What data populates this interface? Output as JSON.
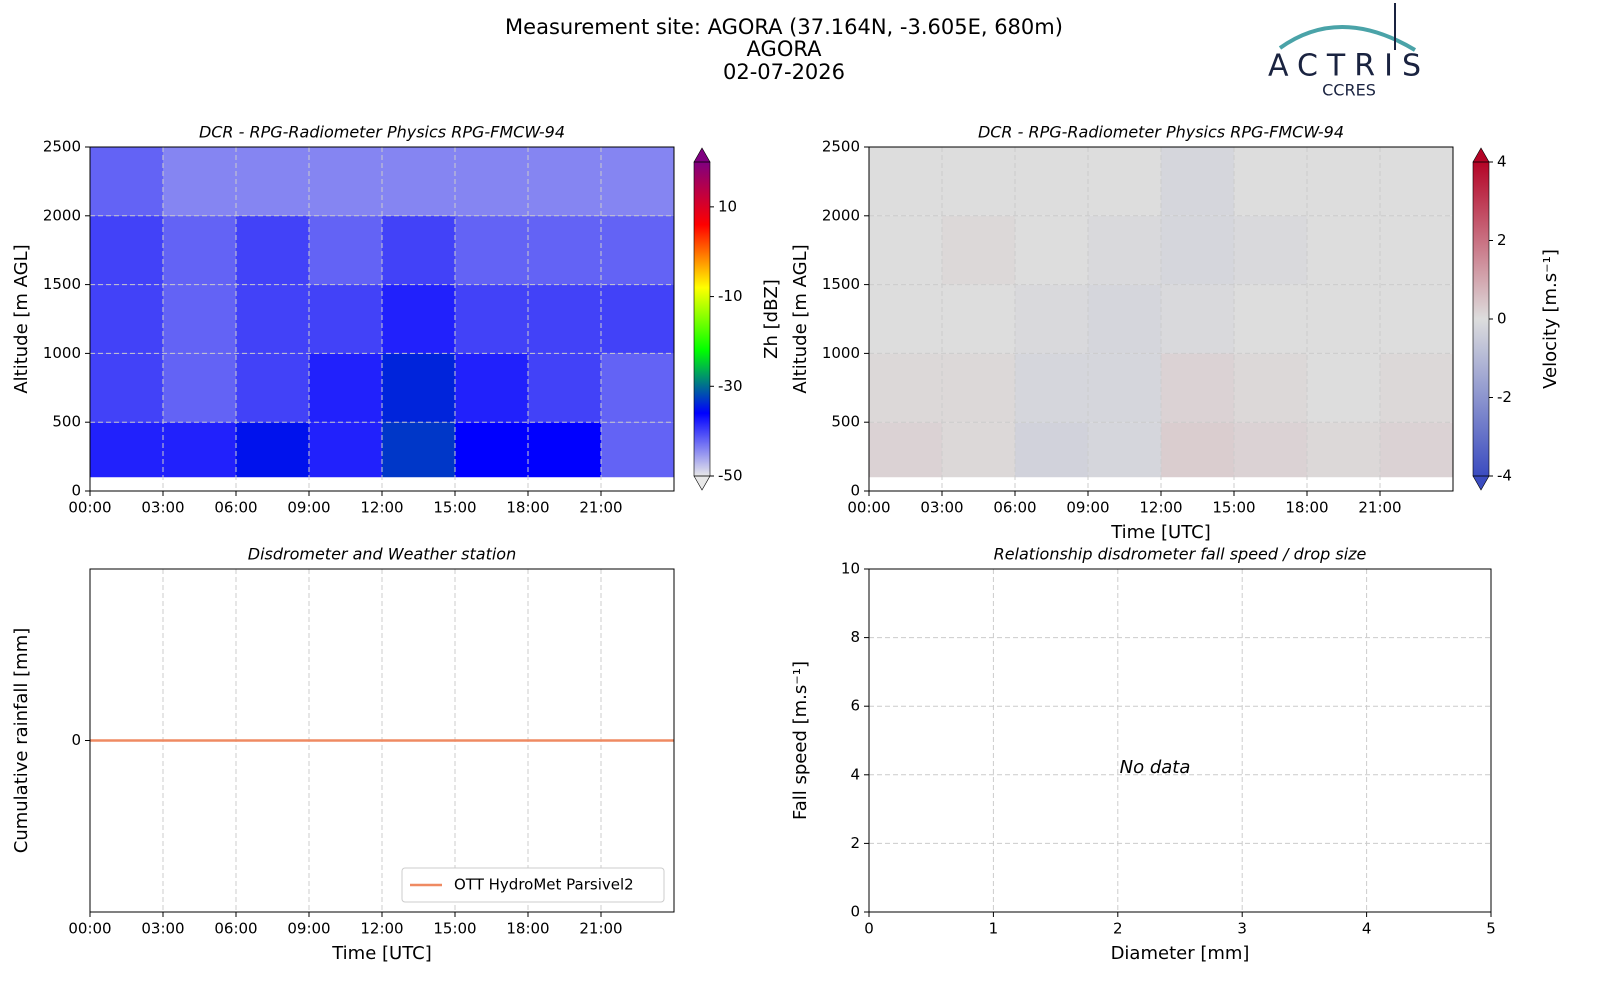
{
  "header": {
    "title": [
      "Measurement site: AGORA (37.164N, -3.605E, 680m)",
      "AGORA",
      "02-07-2026"
    ],
    "logo": "ACTRIS",
    "logo_sub": "CCRES"
  },
  "chart_data": [
    {
      "type": "heatmap",
      "title": "DCR - RPG-Radiometer Physics RPG-FMCW-94",
      "ylabel": "Altitude [m AGL]",
      "x": [
        0,
        3,
        6,
        9,
        12,
        15,
        18,
        21,
        24
      ],
      "y": [
        100,
        500,
        1000,
        1500,
        2000,
        2500
      ],
      "z": [
        [
          -38,
          -38,
          -35,
          -38,
          -33,
          -36,
          -36,
          -42
        ],
        [
          -40,
          -42,
          -40,
          -38,
          -34,
          -38,
          -40,
          -42
        ],
        [
          -40,
          -42,
          -40,
          -40,
          -38,
          -40,
          -40,
          -40
        ],
        [
          -40,
          -42,
          -40,
          -42,
          -40,
          -42,
          -42,
          -42
        ],
        [
          -42,
          -44,
          -44,
          -44,
          -44,
          -44,
          -44,
          -44
        ]
      ],
      "xlim": [
        0,
        24
      ],
      "xticks": [
        {
          "value": 0,
          "label": "00:00"
        },
        {
          "value": 3,
          "label": "03:00"
        },
        {
          "value": 6,
          "label": "06:00"
        },
        {
          "value": 9,
          "label": "09:00"
        },
        {
          "value": 12,
          "label": "12:00"
        },
        {
          "value": 15,
          "label": "15:00"
        },
        {
          "value": 18,
          "label": "18:00"
        },
        {
          "value": 21,
          "label": "21:00"
        }
      ],
      "ylim": [
        0,
        2500
      ],
      "yticks": [
        0,
        500,
        1000,
        1500,
        2000,
        2500
      ],
      "grid": true,
      "colorbar_label": "Zh [dBZ]",
      "clim": [
        -50,
        20
      ],
      "cticks": [
        -50,
        -30,
        -10,
        10
      ],
      "colorscale": [
        "#e8e8e8",
        "#0000ff",
        "#00ff00",
        "#ffff00",
        "#ff0000",
        "#800080"
      ]
    },
    {
      "type": "heatmap",
      "title": "DCR - RPG-Radiometer Physics RPG-FMCW-94",
      "ylabel": "Altitude [m AGL]",
      "xlabel": "Time [UTC]",
      "x": [
        0,
        3,
        6,
        9,
        12,
        15,
        18,
        21,
        24
      ],
      "y": [
        100,
        500,
        1000,
        1500,
        2000,
        2500
      ],
      "z": [
        [
          0.2,
          0.1,
          -0.3,
          -0.2,
          0.3,
          0.2,
          0.1,
          0.2
        ],
        [
          0.1,
          0.1,
          -0.2,
          -0.2,
          0.2,
          0.1,
          0,
          0.1
        ],
        [
          0,
          0,
          -0.1,
          -0.2,
          -0.1,
          0,
          0,
          0
        ],
        [
          0,
          0.1,
          0,
          -0.1,
          -0.2,
          -0.1,
          0,
          0
        ],
        [
          0,
          0,
          0,
          0,
          -0.2,
          0,
          0,
          0
        ]
      ],
      "xlim": [
        0,
        24
      ],
      "xticks": [
        {
          "value": 0,
          "label": "00:00"
        },
        {
          "value": 3,
          "label": "03:00"
        },
        {
          "value": 6,
          "label": "06:00"
        },
        {
          "value": 9,
          "label": "09:00"
        },
        {
          "value": 12,
          "label": "12:00"
        },
        {
          "value": 15,
          "label": "15:00"
        },
        {
          "value": 18,
          "label": "18:00"
        },
        {
          "value": 21,
          "label": "21:00"
        }
      ],
      "ylim": [
        0,
        2500
      ],
      "yticks": [
        0,
        500,
        1000,
        1500,
        2000,
        2500
      ],
      "grid": true,
      "colorbar_label": "Velocity [m.s⁻¹]",
      "clim": [
        -4,
        4
      ],
      "cticks": [
        -4,
        -2,
        0,
        2,
        4
      ],
      "colorscale": [
        "#3b4cc0",
        "#dddddd",
        "#b40426"
      ]
    },
    {
      "type": "line",
      "title": "Disdrometer and Weather station",
      "ylabel": "Cumulative rainfall [mm]",
      "xlabel": "Time [UTC]",
      "x": [
        0,
        24
      ],
      "series": [
        {
          "name": "OTT HydroMet Parsivel2",
          "color": "#ef8a62",
          "values": [
            0,
            0
          ]
        }
      ],
      "xlim": [
        0,
        24
      ],
      "xticks": [
        {
          "value": 0,
          "label": "00:00"
        },
        {
          "value": 3,
          "label": "03:00"
        },
        {
          "value": 6,
          "label": "06:00"
        },
        {
          "value": 9,
          "label": "09:00"
        },
        {
          "value": 12,
          "label": "12:00"
        },
        {
          "value": 15,
          "label": "15:00"
        },
        {
          "value": 18,
          "label": "18:00"
        },
        {
          "value": 21,
          "label": "21:00"
        }
      ],
      "ylim": [
        -0.05,
        0.05
      ],
      "yticks": [
        0
      ],
      "grid": true,
      "legend": "lower right"
    },
    {
      "type": "scatter",
      "title": "Relationship disdrometer fall speed / drop size",
      "xlabel": "Diameter [mm]",
      "ylabel": "Fall speed [m.s⁻¹]",
      "annotation": "No data",
      "xlim": [
        0,
        5
      ],
      "xticks": [
        0,
        1,
        2,
        3,
        4,
        5
      ],
      "ylim": [
        0,
        10
      ],
      "yticks": [
        0,
        2,
        4,
        6,
        8,
        10
      ],
      "grid": true
    }
  ]
}
